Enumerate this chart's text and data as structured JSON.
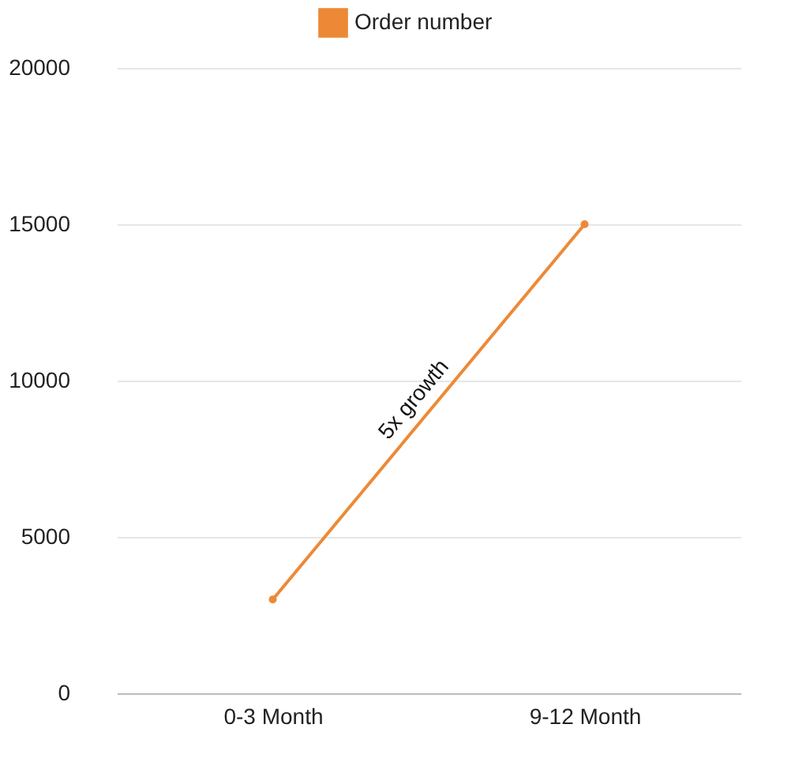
{
  "chart_data": {
    "type": "line",
    "categories": [
      "0-3 Month",
      "9-12 Month"
    ],
    "series": [
      {
        "name": "Order number",
        "color": "#ed8936",
        "values": [
          3000,
          15000
        ]
      }
    ],
    "ylim": [
      0,
      20000
    ],
    "yticks": [
      0,
      5000,
      10000,
      15000,
      20000
    ],
    "grid": "y",
    "legend": "top",
    "marker": "circle",
    "line_style": "solid",
    "annotations": [
      "5x growth"
    ]
  }
}
